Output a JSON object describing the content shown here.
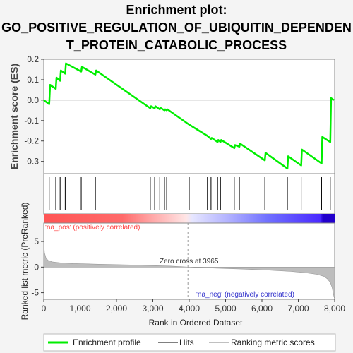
{
  "chart_data": {
    "type": "line",
    "title": [
      "Enrichment plot:",
      "GO_POSITIVE_REGULATION_OF_UBIQUITIN_DEPENDEN",
      "T_PROTEIN_CATABOLIC_PROCESS"
    ],
    "es_panel": {
      "ylabel": "Enrichment score (ES)",
      "ylim": [
        -0.36,
        0.2
      ],
      "yticks": [
        0.2,
        0.1,
        0.0,
        -0.1,
        -0.2,
        -0.3
      ],
      "ytick_labels": [
        "0.2",
        "0.1",
        "0.0",
        "-0.1",
        "-0.2",
        "-0.3"
      ],
      "series": [
        {
          "name": "Enrichment profile",
          "color": "#00ee00",
          "x": [
            0,
            150,
            175,
            330,
            350,
            450,
            470,
            590,
            610,
            1030,
            1050,
            1420,
            1440,
            2930,
            2950,
            3050,
            3070,
            3190,
            3210,
            3320,
            3340,
            3380,
            3400,
            4000,
            4500,
            4600,
            4620,
            4780,
            4800,
            4860,
            4880,
            5240,
            5260,
            5380,
            5400,
            6080,
            6100,
            6700,
            6720,
            7080,
            7100,
            7640,
            7660,
            7880,
            7900,
            7980
          ],
          "y": [
            0.0,
            -0.02,
            0.075,
            0.055,
            0.11,
            0.095,
            0.145,
            0.13,
            0.18,
            0.14,
            0.163,
            0.125,
            0.145,
            -0.04,
            -0.03,
            -0.04,
            -0.03,
            -0.045,
            -0.038,
            -0.05,
            -0.045,
            -0.05,
            -0.045,
            -0.12,
            -0.175,
            -0.19,
            -0.185,
            -0.205,
            -0.195,
            -0.205,
            -0.195,
            -0.235,
            -0.22,
            -0.228,
            -0.213,
            -0.295,
            -0.258,
            -0.335,
            -0.275,
            -0.32,
            -0.242,
            -0.31,
            -0.18,
            -0.205,
            0.01,
            0.0
          ]
        }
      ]
    },
    "hits": {
      "name": "Hits",
      "x": [
        150,
        330,
        450,
        590,
        1030,
        1420,
        2930,
        3050,
        3190,
        3320,
        3380,
        4000,
        4500,
        4600,
        4780,
        4860,
        5240,
        5380,
        6080,
        6700,
        7080,
        7640,
        7880
      ]
    },
    "rank_panel": {
      "ylabel": "Ranked list metric (PreRanked)",
      "ylim": [
        -6.3,
        8.6
      ],
      "yticks": [
        5,
        0,
        -5
      ],
      "ytick_labels": [
        "5",
        "0",
        "-5"
      ],
      "zero_cross_label": "Zero cross at 3965",
      "zero_cross": 3965,
      "pos_label": "'na_pos' (positively correlated)",
      "neg_label": "'na_neg' (negatively correlated)",
      "profile": {
        "name": "Ranking metric scores",
        "x": [
          0,
          20,
          60,
          120,
          250,
          500,
          800,
          1500,
          2500,
          3500,
          3965,
          4500,
          5500,
          6200,
          6800,
          7200,
          7500,
          7700,
          7800,
          7880,
          7930,
          7970,
          8000
        ],
        "y": [
          5.0,
          2.8,
          1.8,
          1.3,
          1.0,
          0.8,
          0.7,
          0.55,
          0.4,
          0.2,
          0.0,
          -0.15,
          -0.4,
          -0.6,
          -0.85,
          -1.1,
          -1.4,
          -1.8,
          -2.3,
          -3.0,
          -4.0,
          -5.5,
          -6.3
        ]
      }
    },
    "xaxis": {
      "label": "Rank in Ordered Dataset",
      "xlim": [
        0,
        8000
      ],
      "ticks": [
        0,
        1000,
        2000,
        3000,
        4000,
        5000,
        6000,
        7000,
        8000
      ],
      "tick_labels": [
        "0",
        "1,000",
        "2,000",
        "3,000",
        "4,000",
        "5,000",
        "6,000",
        "7,000",
        "8,000"
      ]
    },
    "legend": {
      "position": "bottom",
      "entries": [
        {
          "label": "Enrichment profile",
          "color": "#00ee00",
          "kind": "thick-line"
        },
        {
          "label": "Hits",
          "color": "#000000",
          "kind": "line"
        },
        {
          "label": "Ranking metric scores",
          "color": "#c0c0c0",
          "kind": "line"
        }
      ]
    },
    "colors": {
      "background": "#f4f4f4",
      "plot_area": "#ffffff",
      "profile": "#00ee00",
      "pos_text": "#ff4444",
      "neg_text": "#3333cc",
      "metric_fill": "#bdbdbd"
    }
  }
}
